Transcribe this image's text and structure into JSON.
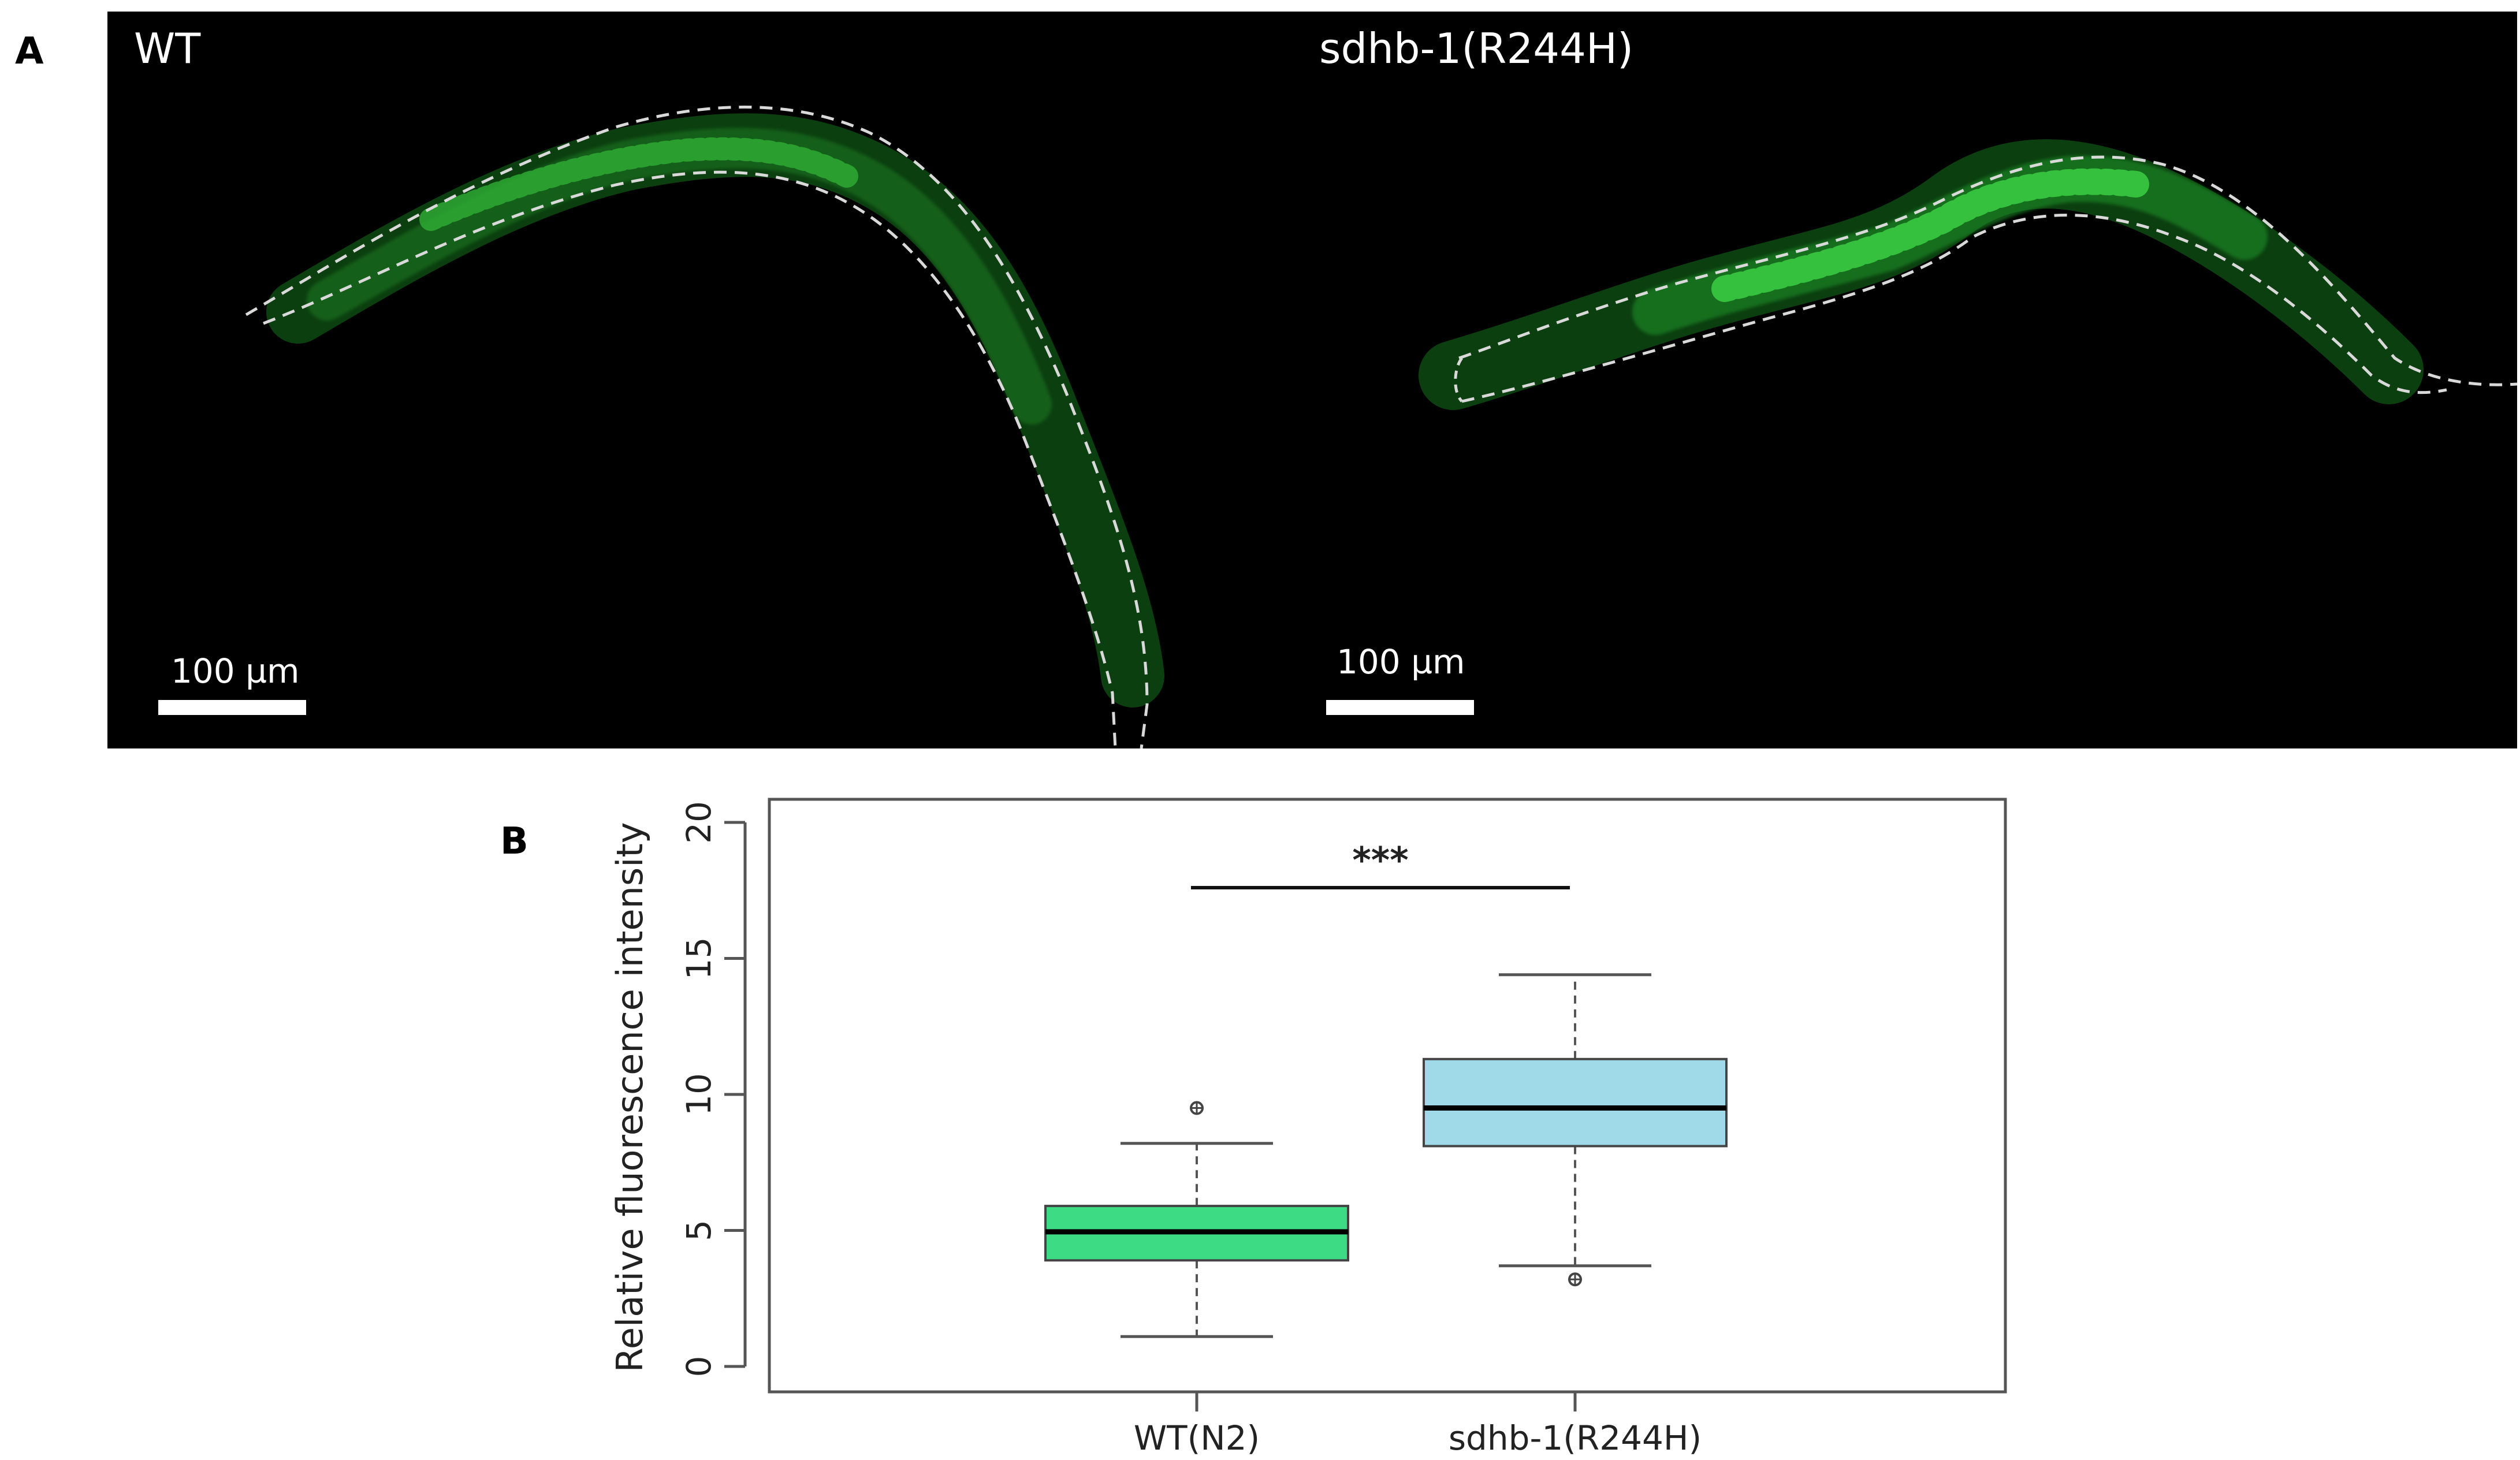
{
  "panels": {
    "a_letter": "A",
    "b_letter": "B"
  },
  "micrograph": {
    "left_label": "WT",
    "right_label": "sdhb-1(R244H)",
    "scale_left": "100 µm",
    "scale_right": "100 µm",
    "background_color": "#000000",
    "fluorescence_color": "#22c522",
    "outline_color": "#d9d9d9"
  },
  "chart_data": {
    "type": "box",
    "categories": [
      "WT(N2)",
      "sdhb-1(R244H)"
    ],
    "ylabel": "Relative fluorescence intensity",
    "ylim": [
      0,
      20
    ],
    "yticks": [
      0,
      5,
      10,
      15,
      20
    ],
    "boxes": [
      {
        "category": "WT(N2)",
        "whisker_low": 1.1,
        "q1": 3.9,
        "median": 4.95,
        "q3": 5.9,
        "whisker_high": 8.2,
        "outliers": [
          9.5
        ],
        "color": "#3ddc84"
      },
      {
        "category": "sdhb-1(R244H)",
        "whisker_low": 3.7,
        "q1": 8.1,
        "median": 9.5,
        "q3": 11.3,
        "whisker_high": 14.4,
        "outliers": [
          3.2
        ],
        "color": "#a0d9e8"
      }
    ],
    "significance": {
      "label": "***",
      "y": 17.6
    },
    "grid": false,
    "legend": "none"
  }
}
